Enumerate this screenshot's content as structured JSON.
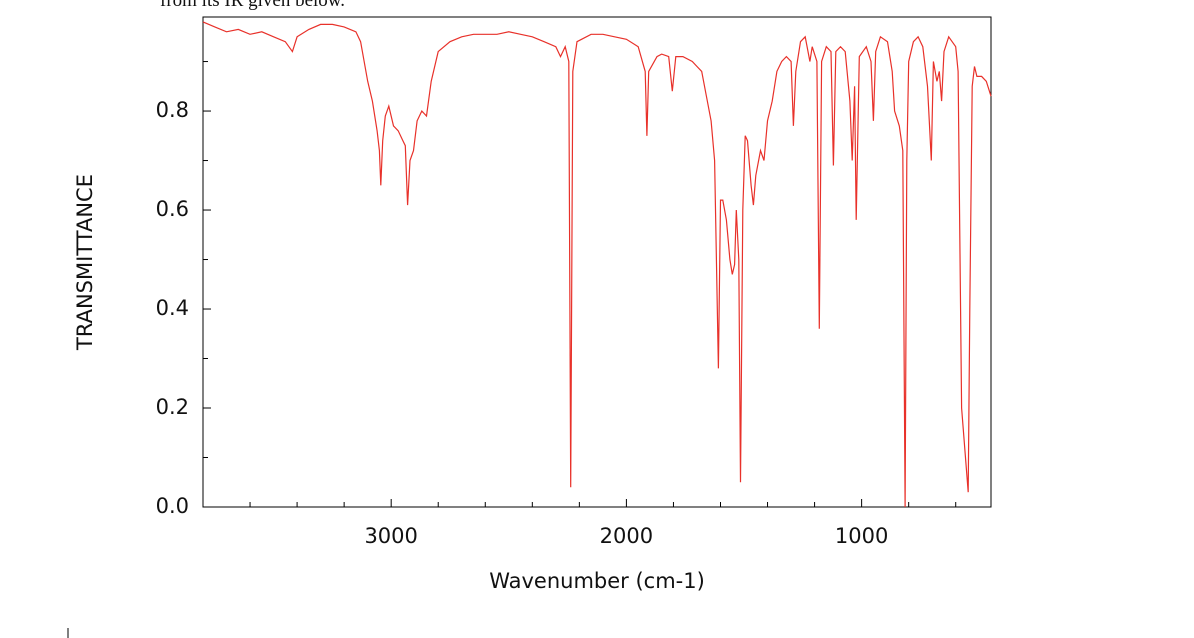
{
  "chart_data": {
    "type": "line",
    "annotation": "from its IR given below.",
    "xlabel": "Wavenumber (cm-1)",
    "ylabel": "TRANSMITTANCE",
    "xlim": [
      3800,
      450
    ],
    "ylim": [
      0,
      0.99
    ],
    "xticks": [
      3000,
      2000,
      1000
    ],
    "yticks": [
      {
        "value": 0,
        "label": "0.0"
      },
      0.2,
      0.4,
      0.6,
      0.8
    ],
    "xminorticks": [
      3600,
      3400,
      3200,
      2800,
      2600,
      2400,
      2200,
      1800,
      1600,
      1400,
      1200,
      800,
      600
    ],
    "yminorticks": [
      0.1,
      0.3,
      0.5,
      0.7,
      0.9
    ],
    "series": [
      {
        "color": "#e8312a",
        "x": [
          3800,
          3750,
          3700,
          3650,
          3600,
          3550,
          3500,
          3450,
          3420,
          3400,
          3350,
          3300,
          3250,
          3200,
          3150,
          3130,
          3100,
          3080,
          3060,
          3050,
          3044,
          3036,
          3025,
          3010,
          2990,
          2970,
          2950,
          2940,
          2930,
          2920,
          2905,
          2890,
          2870,
          2850,
          2830,
          2800,
          2750,
          2700,
          2650,
          2600,
          2550,
          2500,
          2450,
          2400,
          2350,
          2300,
          2280,
          2260,
          2245,
          2237,
          2228,
          2210,
          2150,
          2100,
          2050,
          2000,
          1950,
          1920,
          1913,
          1905,
          1870,
          1850,
          1820,
          1805,
          1790,
          1760,
          1720,
          1700,
          1680,
          1660,
          1640,
          1625,
          1609,
          1600,
          1590,
          1575,
          1560,
          1550,
          1540,
          1533,
          1522,
          1515,
          1505,
          1495,
          1485,
          1470,
          1460,
          1450,
          1430,
          1415,
          1400,
          1380,
          1360,
          1340,
          1320,
          1300,
          1290,
          1280,
          1260,
          1240,
          1220,
          1210,
          1190,
          1180,
          1170,
          1150,
          1130,
          1120,
          1110,
          1090,
          1070,
          1050,
          1040,
          1030,
          1023,
          1010,
          980,
          960,
          950,
          940,
          920,
          890,
          870,
          860,
          840,
          825,
          815,
          808,
          800,
          780,
          760,
          740,
          720,
          704,
          695,
          680,
          670,
          660,
          650,
          630,
          600,
          590,
          575,
          547,
          540,
          530,
          520,
          510,
          490,
          470,
          450
        ],
        "values": [
          0.98,
          0.97,
          0.96,
          0.965,
          0.955,
          0.96,
          0.95,
          0.94,
          0.92,
          0.95,
          0.965,
          0.975,
          0.975,
          0.97,
          0.96,
          0.94,
          0.86,
          0.82,
          0.76,
          0.72,
          0.65,
          0.74,
          0.79,
          0.81,
          0.77,
          0.76,
          0.74,
          0.73,
          0.61,
          0.7,
          0.72,
          0.78,
          0.8,
          0.79,
          0.86,
          0.92,
          0.94,
          0.95,
          0.955,
          0.955,
          0.955,
          0.96,
          0.955,
          0.95,
          0.94,
          0.93,
          0.91,
          0.93,
          0.9,
          0.04,
          0.88,
          0.94,
          0.955,
          0.955,
          0.95,
          0.945,
          0.93,
          0.88,
          0.75,
          0.88,
          0.91,
          0.915,
          0.91,
          0.84,
          0.91,
          0.91,
          0.9,
          0.89,
          0.88,
          0.83,
          0.78,
          0.7,
          0.28,
          0.62,
          0.62,
          0.58,
          0.5,
          0.47,
          0.49,
          0.6,
          0.5,
          0.05,
          0.6,
          0.75,
          0.74,
          0.65,
          0.61,
          0.67,
          0.72,
          0.7,
          0.78,
          0.82,
          0.88,
          0.9,
          0.91,
          0.9,
          0.77,
          0.88,
          0.94,
          0.95,
          0.9,
          0.93,
          0.9,
          0.36,
          0.9,
          0.93,
          0.92,
          0.69,
          0.92,
          0.93,
          0.92,
          0.82,
          0.7,
          0.85,
          0.58,
          0.91,
          0.93,
          0.9,
          0.78,
          0.92,
          0.95,
          0.94,
          0.88,
          0.8,
          0.77,
          0.72,
          0.0,
          0.7,
          0.9,
          0.94,
          0.95,
          0.93,
          0.85,
          0.7,
          0.9,
          0.86,
          0.88,
          0.82,
          0.92,
          0.95,
          0.93,
          0.88,
          0.2,
          0.03,
          0.4,
          0.85,
          0.89,
          0.87,
          0.87,
          0.86,
          0.83
        ]
      }
    ]
  }
}
